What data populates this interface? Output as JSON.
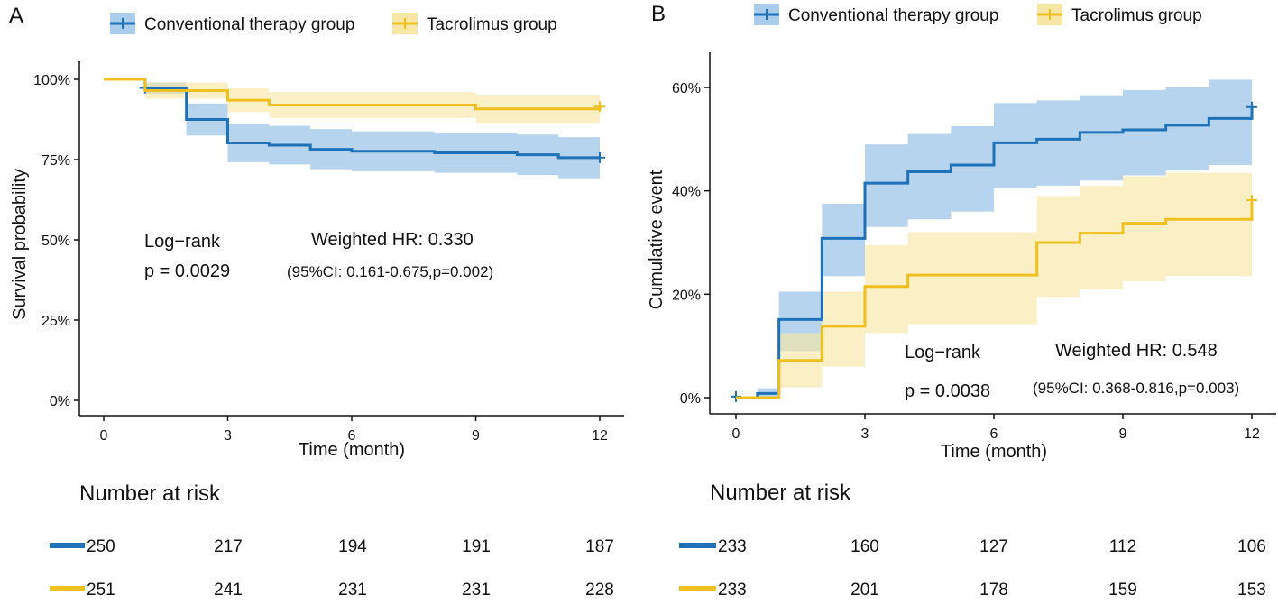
{
  "colors": {
    "blue": "#1f72b8",
    "blue_band": "#a9cdeb",
    "yellow": "#f0c020",
    "yellow_band": "#f7e7a6",
    "overlap": "#a9b98e"
  },
  "chart_data": [
    {
      "type": "line",
      "panel_label": "A",
      "legend": [
        "Conventional therapy group",
        "Tacrolimus group"
      ],
      "xlabel": "Time (month)",
      "ylabel": "Survival probability",
      "xlim": [
        0,
        12
      ],
      "ylim": [
        0,
        1
      ],
      "xticks": [
        "0",
        "3",
        "6",
        "9",
        "12"
      ],
      "yticks": [
        "0%",
        "25%",
        "50%",
        "75%",
        "100%"
      ],
      "annotations": {
        "logrank": "Log−rank",
        "pvalue": "p =  0.0029",
        "hr": "Weighted HR: 0.330",
        "ci": "(95%CI: 0.161-0.675,p=0.002)"
      },
      "series": [
        {
          "name": "Conventional therapy group",
          "steps": [
            [
              0,
              1
            ],
            [
              1,
              0.973
            ],
            [
              2,
              0.875
            ],
            [
              3,
              0.802
            ],
            [
              4,
              0.795
            ],
            [
              5,
              0.782
            ],
            [
              6,
              0.776
            ],
            [
              8,
              0.771
            ],
            [
              10,
              0.765
            ],
            [
              11,
              0.756
            ],
            [
              12,
              0.756
            ]
          ],
          "lower": [
            [
              0,
              1
            ],
            [
              1,
              0.955
            ],
            [
              2,
              0.825
            ],
            [
              3,
              0.742
            ],
            [
              4,
              0.735
            ],
            [
              5,
              0.72
            ],
            [
              6,
              0.714
            ],
            [
              8,
              0.709
            ],
            [
              10,
              0.702
            ],
            [
              11,
              0.692
            ],
            [
              12,
              0.692
            ]
          ],
          "upper": [
            [
              0,
              1
            ],
            [
              1,
              0.99
            ],
            [
              2,
              0.925
            ],
            [
              3,
              0.862
            ],
            [
              4,
              0.855
            ],
            [
              5,
              0.845
            ],
            [
              6,
              0.838
            ],
            [
              8,
              0.833
            ],
            [
              10,
              0.828
            ],
            [
              11,
              0.82
            ],
            [
              12,
              0.82
            ]
          ],
          "censor": [
            [
              1,
              0.973
            ],
            [
              12,
              0.756
            ]
          ]
        },
        {
          "name": "Tacrolimus group",
          "steps": [
            [
              0,
              1
            ],
            [
              1,
              0.965
            ],
            [
              3,
              0.935
            ],
            [
              4,
              0.92
            ],
            [
              9,
              0.908
            ],
            [
              12,
              0.915
            ]
          ],
          "lower": [
            [
              0,
              1
            ],
            [
              1,
              0.94
            ],
            [
              3,
              0.898
            ],
            [
              4,
              0.88
            ],
            [
              9,
              0.864
            ],
            [
              12,
              0.864
            ]
          ],
          "upper": [
            [
              0,
              1
            ],
            [
              1,
              0.99
            ],
            [
              3,
              0.972
            ],
            [
              4,
              0.96
            ],
            [
              9,
              0.952
            ],
            [
              12,
              0.952
            ]
          ],
          "censor": [
            [
              12,
              0.915
            ]
          ]
        }
      ],
      "risk_title": "Number at risk",
      "risk_table": [
        [
          "250",
          "217",
          "194",
          "191",
          "187"
        ],
        [
          "251",
          "241",
          "231",
          "231",
          "228"
        ]
      ]
    },
    {
      "type": "line",
      "panel_label": "B",
      "legend": [
        "Conventional therapy group",
        "Tacrolimus group"
      ],
      "xlabel": "Time (month)",
      "ylabel": "Cumulative event",
      "xlim": [
        0,
        12
      ],
      "ylim": [
        0,
        0.6
      ],
      "xticks": [
        "0",
        "3",
        "6",
        "9",
        "12"
      ],
      "yticks": [
        "0%",
        "20%",
        "40%",
        "60%"
      ],
      "annotations": {
        "logrank": "Log−rank",
        "pvalue": "p =  0.0038",
        "hr": "Weighted HR: 0.548",
        "ci": "(95%CI: 0.368-0.816,p=0.003)"
      },
      "series": [
        {
          "name": "Conventional therapy group",
          "steps": [
            [
              0,
              0
            ],
            [
              0.5,
              0.008
            ],
            [
              1,
              0.151
            ],
            [
              2,
              0.308
            ],
            [
              3,
              0.415
            ],
            [
              4,
              0.437
            ],
            [
              5,
              0.45
            ],
            [
              6,
              0.493
            ],
            [
              7,
              0.5
            ],
            [
              8,
              0.513
            ],
            [
              9,
              0.518
            ],
            [
              10,
              0.527
            ],
            [
              11,
              0.54
            ],
            [
              12,
              0.562
            ]
          ],
          "lower": [
            [
              0,
              0
            ],
            [
              0.5,
              0
            ],
            [
              1,
              0.09
            ],
            [
              2,
              0.235
            ],
            [
              3,
              0.33
            ],
            [
              4,
              0.345
            ],
            [
              5,
              0.36
            ],
            [
              6,
              0.405
            ],
            [
              7,
              0.41
            ],
            [
              8,
              0.42
            ],
            [
              9,
              0.43
            ],
            [
              10,
              0.44
            ],
            [
              11,
              0.45
            ],
            [
              12,
              0.455
            ]
          ],
          "upper": [
            [
              0,
              0.002
            ],
            [
              0.5,
              0.018
            ],
            [
              1,
              0.205
            ],
            [
              2,
              0.375
            ],
            [
              3,
              0.49
            ],
            [
              4,
              0.51
            ],
            [
              5,
              0.525
            ],
            [
              6,
              0.57
            ],
            [
              7,
              0.575
            ],
            [
              8,
              0.585
            ],
            [
              9,
              0.595
            ],
            [
              10,
              0.6
            ],
            [
              11,
              0.615
            ],
            [
              12,
              0.615
            ]
          ],
          "censor": [
            [
              0,
              0.002
            ],
            [
              12,
              0.562
            ]
          ]
        },
        {
          "name": "Tacrolimus group",
          "steps": [
            [
              0,
              0
            ],
            [
              1,
              0.072
            ],
            [
              2,
              0.138
            ],
            [
              3,
              0.215
            ],
            [
              4,
              0.237
            ],
            [
              7,
              0.3
            ],
            [
              8,
              0.318
            ],
            [
              9,
              0.337
            ],
            [
              10,
              0.345
            ],
            [
              12,
              0.382
            ]
          ],
          "lower": [
            [
              0,
              0
            ],
            [
              1,
              0.02
            ],
            [
              2,
              0.06
            ],
            [
              3,
              0.125
            ],
            [
              4,
              0.142
            ],
            [
              7,
              0.195
            ],
            [
              8,
              0.21
            ],
            [
              9,
              0.225
            ],
            [
              10,
              0.235
            ],
            [
              12,
              0.235
            ]
          ],
          "upper": [
            [
              0,
              0.002
            ],
            [
              1,
              0.125
            ],
            [
              2,
              0.205
            ],
            [
              3,
              0.295
            ],
            [
              4,
              0.32
            ],
            [
              7,
              0.39
            ],
            [
              8,
              0.41
            ],
            [
              9,
              0.428
            ],
            [
              10,
              0.435
            ],
            [
              12,
              0.435
            ]
          ],
          "censor": [
            [
              12,
              0.382
            ]
          ]
        }
      ],
      "risk_title": "Number at risk",
      "risk_table": [
        [
          "233",
          "160",
          "127",
          "112",
          "106"
        ],
        [
          "233",
          "201",
          "178",
          "159",
          "153"
        ]
      ]
    }
  ]
}
